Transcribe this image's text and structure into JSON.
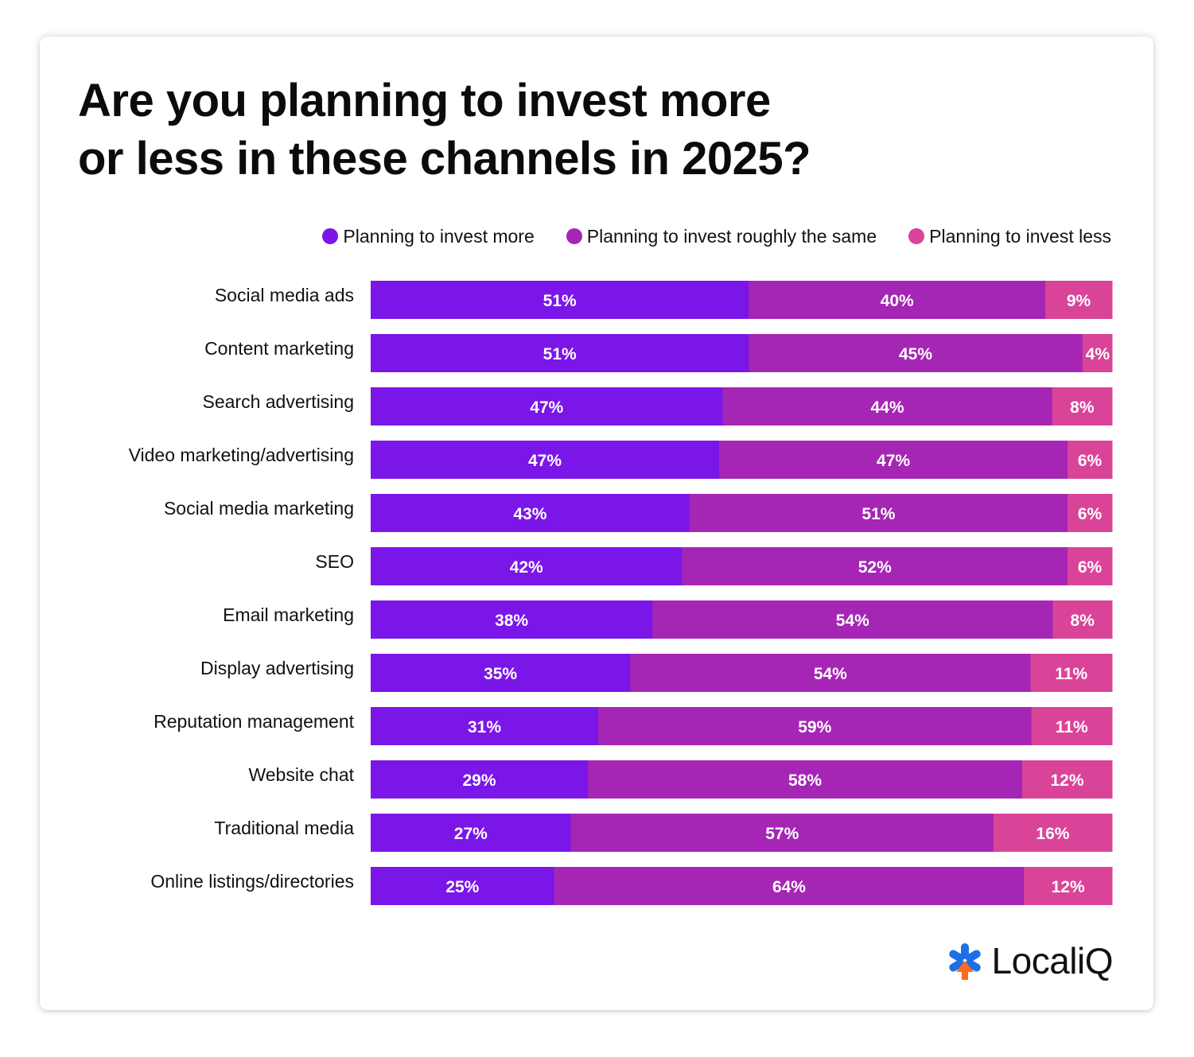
{
  "colors": {
    "more": "#7b16e8",
    "same": "#a526b4",
    "less": "#d94499",
    "text": "#111111"
  },
  "chart_data": {
    "type": "bar",
    "orientation": "horizontal",
    "stacked": true,
    "title": "Are you planning to invest more or less in these channels in 2025?",
    "title_lines": [
      "Are you planning to invest more",
      "or less in these channels in 2025?"
    ],
    "legend_position": "top-right",
    "categories": [
      "Social media ads",
      "Content marketing",
      "Search advertising",
      "Video marketing/advertising",
      "Social media marketing",
      "SEO",
      "Email marketing",
      "Display advertising",
      "Reputation management",
      "Website chat",
      "Traditional media",
      "Online listings/directories"
    ],
    "series": [
      {
        "name": "Planning to invest more",
        "key": "more",
        "values": [
          51,
          51,
          47,
          47,
          43,
          42,
          38,
          35,
          31,
          29,
          27,
          25
        ]
      },
      {
        "name": "Planning to invest roughly the same",
        "key": "same",
        "values": [
          40,
          45,
          44,
          47,
          51,
          52,
          54,
          54,
          59,
          58,
          57,
          64
        ]
      },
      {
        "name": "Planning to invest less",
        "key": "less",
        "values": [
          9,
          4,
          8,
          6,
          6,
          6,
          8,
          11,
          11,
          12,
          16,
          12
        ]
      }
    ],
    "unit": "%"
  },
  "branding": {
    "logo_text": "LocaliQ",
    "logo_icon": "localiq-asterisk-icon"
  }
}
